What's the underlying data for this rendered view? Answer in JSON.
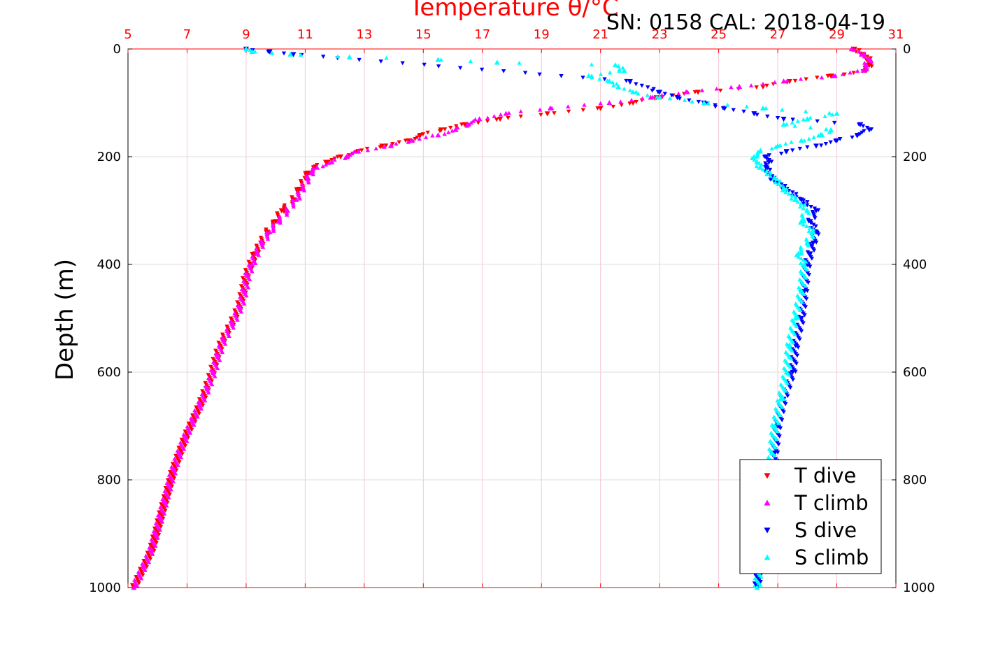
{
  "header": {
    "sn_cal": "SN: 0158  CAL: 2018-04-19"
  },
  "chart_data": {
    "type": "scatter",
    "title": "",
    "x_top_label": "Temperature θ/°C",
    "ylabel": "Depth (m)",
    "xlim": [
      5,
      31
    ],
    "ylim": [
      0,
      1000
    ],
    "y_reversed": true,
    "grid": true,
    "legend_position": "bottom-right",
    "x_ticks": [
      5,
      7,
      9,
      11,
      13,
      15,
      17,
      19,
      21,
      23,
      25,
      27,
      29,
      31
    ],
    "y_ticks": [
      0,
      200,
      400,
      600,
      800,
      1000
    ],
    "colors": {
      "axis_top": "#ff0000",
      "T_dive": "#ff0000",
      "T_climb": "#ff00ff",
      "S_dive": "#0000ff",
      "S_climb": "#00ffff"
    },
    "series": [
      {
        "name": "T dive",
        "marker": "triangle-down",
        "color": "#ff0000",
        "depth": [
          0,
          10,
          20,
          30,
          40,
          50,
          60,
          70,
          80,
          90,
          100,
          110,
          120,
          130,
          140,
          150,
          160,
          170,
          180,
          190,
          200,
          210,
          220,
          230,
          240,
          260,
          280,
          300,
          320,
          340,
          360,
          380,
          400,
          420,
          450,
          480,
          510,
          540,
          570,
          600,
          630,
          660,
          690,
          720,
          750,
          780,
          810,
          840,
          870,
          900,
          930,
          960,
          1000
        ],
        "temperature": [
          29.6,
          29.9,
          30.1,
          30.1,
          30.0,
          28.8,
          27.4,
          26.5,
          24.3,
          22.9,
          22.1,
          21.0,
          19.2,
          17.6,
          16.4,
          15.6,
          14.9,
          14.5,
          13.6,
          12.8,
          12.2,
          11.7,
          11.3,
          11.1,
          11.0,
          10.8,
          10.6,
          10.2,
          10.0,
          9.7,
          9.5,
          9.3,
          9.15,
          9.0,
          8.9,
          8.75,
          8.5,
          8.2,
          8.0,
          7.85,
          7.65,
          7.45,
          7.2,
          6.95,
          6.75,
          6.55,
          6.4,
          6.25,
          6.1,
          5.95,
          5.8,
          5.55,
          5.2
        ]
      },
      {
        "name": "T climb",
        "marker": "triangle-up",
        "color": "#ff00ff",
        "depth": [
          0,
          10,
          20,
          30,
          40,
          50,
          60,
          70,
          80,
          90,
          100,
          110,
          120,
          130,
          140,
          150,
          160,
          170,
          180,
          190,
          200,
          210,
          220,
          230,
          240,
          260,
          280,
          300,
          320,
          340,
          360,
          380,
          400,
          420,
          450,
          480,
          510,
          540,
          570,
          600,
          630,
          660,
          690,
          720,
          750,
          780,
          810,
          840,
          870,
          900,
          930,
          960,
          1000
        ],
        "temperature": [
          29.5,
          29.9,
          30.1,
          30.0,
          29.9,
          28.9,
          27.2,
          25.7,
          23.9,
          22.7,
          21.3,
          19.3,
          17.8,
          16.9,
          16.5,
          16.1,
          15.5,
          14.6,
          13.9,
          12.8,
          12.4,
          11.9,
          11.4,
          11.2,
          11.1,
          10.9,
          10.7,
          10.4,
          10.1,
          9.8,
          9.55,
          9.35,
          9.2,
          9.05,
          8.95,
          8.8,
          8.55,
          8.25,
          8.05,
          7.9,
          7.7,
          7.45,
          7.2,
          6.95,
          6.75,
          6.55,
          6.4,
          6.25,
          6.1,
          5.95,
          5.8,
          5.55,
          5.2
        ]
      },
      {
        "name": "S dive",
        "marker": "triangle-down",
        "color": "#0000ff",
        "depth": [
          0,
          5,
          10,
          60,
          80,
          90,
          100,
          110,
          120,
          130,
          140,
          150,
          160,
          170,
          180,
          190,
          200,
          210,
          220,
          240,
          260,
          280,
          300,
          320,
          340,
          360,
          380,
          400,
          450,
          500,
          550,
          600,
          650,
          700,
          750,
          800,
          850,
          900,
          950,
          1000
        ],
        "value": [
          9.0,
          9.8,
          10.6,
          22.0,
          23.0,
          23.6,
          24.5,
          25.2,
          26.2,
          27.2,
          29.8,
          30.1,
          29.7,
          29.0,
          28.3,
          27.3,
          26.6,
          26.7,
          26.6,
          26.8,
          27.3,
          27.8,
          28.3,
          28.1,
          28.3,
          28.2,
          28.1,
          28.0,
          27.9,
          27.8,
          27.6,
          27.5,
          27.2,
          27.0,
          26.9,
          26.8,
          26.6,
          26.5,
          26.4,
          26.3
        ]
      },
      {
        "name": "S climb",
        "marker": "triangle-up",
        "color": "#00ffff",
        "depth": [
          0,
          5,
          10,
          15,
          20,
          25,
          30,
          40,
          50,
          60,
          70,
          80,
          90,
          100,
          110,
          120,
          130,
          140,
          150,
          160,
          170,
          180,
          190,
          200,
          210,
          220,
          240,
          260,
          280,
          300,
          320,
          340,
          360,
          380,
          400,
          450,
          500,
          550,
          600,
          650,
          700,
          750,
          800,
          850,
          900,
          950,
          1000
        ],
        "value": [
          9.0,
          9.2,
          10.5,
          12.5,
          15.5,
          17.5,
          21.5,
          21.8,
          20.6,
          21.3,
          21.6,
          22.1,
          23.0,
          24.5,
          26.5,
          29.0,
          28.0,
          27.2,
          28.8,
          28.5,
          27.8,
          27.0,
          26.4,
          26.2,
          26.3,
          26.4,
          26.9,
          27.2,
          27.6,
          28.0,
          27.8,
          28.2,
          28.0,
          27.7,
          27.9,
          27.8,
          27.6,
          27.4,
          27.3,
          27.1,
          26.9,
          26.8,
          26.7,
          26.6,
          26.5,
          26.4,
          26.3
        ]
      }
    ],
    "right_axis_ticks": [
      0,
      200,
      400,
      600,
      800,
      1000
    ]
  }
}
